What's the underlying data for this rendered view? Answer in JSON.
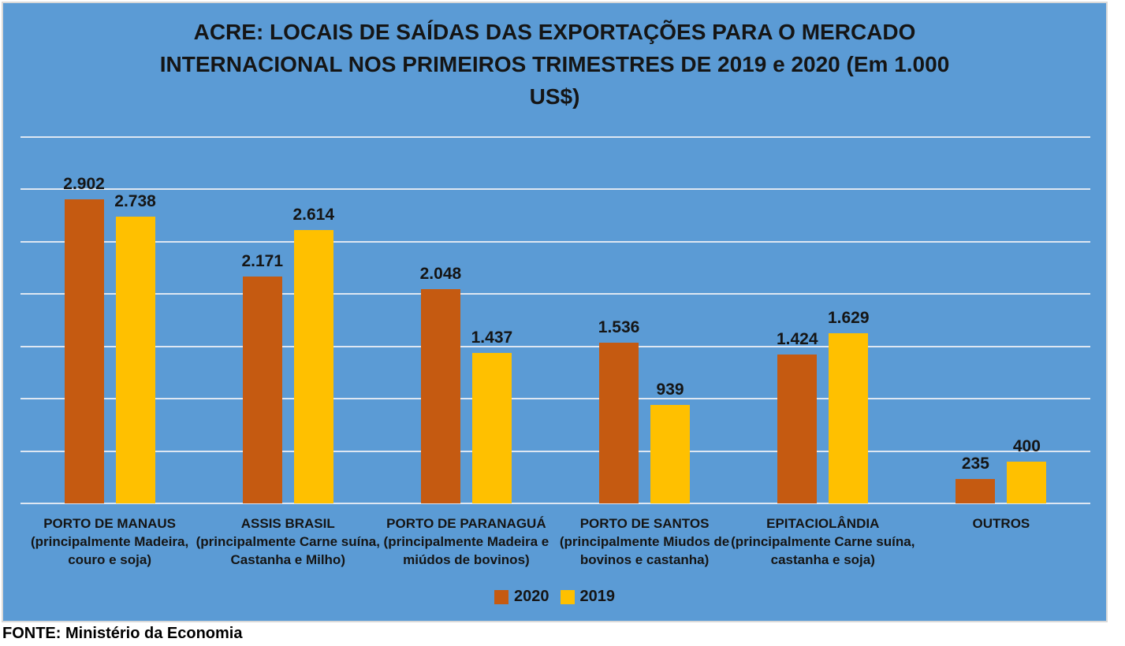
{
  "title": "ACRE: LOCAIS DE SAÍDAS DAS EXPORTAÇÕES PARA O MERCADO INTERNACIONAL NOS PRIMEIROS TRIMESTRES DE 2019 e 2020 (Em 1.000 US$)",
  "source": "FONTE: Ministério da Economia",
  "colors": {
    "background": "#5B9BD5",
    "bar_2020": "#C55A11",
    "bar_2019": "#FFC000",
    "gridline": "#DEE7F2",
    "text": "#151515"
  },
  "legend": [
    {
      "label": "2020",
      "color": "#C55A11"
    },
    {
      "label": "2019",
      "color": "#FFC000"
    }
  ],
  "chart_data": {
    "type": "bar",
    "title": "ACRE: LOCAIS DE SAÍDAS DAS EXPORTAÇÕES PARA O MERCADO INTERNACIONAL NOS PRIMEIROS TRIMESTRES DE 2019 e 2020 (Em 1.000 US$)",
    "categories": [
      {
        "name": "PORTO DE MANAUS",
        "detail": "(principalmente Madeira, couro e soja)"
      },
      {
        "name": "ASSIS BRASIL",
        "detail": "(principalmente Carne suína, Castanha e Milho)"
      },
      {
        "name": "PORTO DE PARANAGUÁ",
        "detail": "(principalmente Madeira e miúdos de bovinos)"
      },
      {
        "name": "PORTO DE SANTOS",
        "detail": "(principalmente Miudos de bovinos e castanha)"
      },
      {
        "name": "EPITACIOLÂNDIA",
        "detail": "(principalmente Carne suína, castanha e soja)"
      },
      {
        "name": "OUTROS",
        "detail": ""
      }
    ],
    "series": [
      {
        "name": "2020",
        "color": "#C55A11",
        "values": [
          2902,
          2171,
          2048,
          1536,
          1424,
          235
        ],
        "labels": [
          "2.902",
          "2.171",
          "2.048",
          "1.536",
          "1.424",
          "235"
        ]
      },
      {
        "name": "2019",
        "color": "#FFC000",
        "values": [
          2738,
          2614,
          1437,
          939,
          1629,
          400
        ],
        "labels": [
          "2.738",
          "2.614",
          "1.437",
          "939",
          "1.629",
          "400"
        ]
      }
    ],
    "ylim": [
      0,
      3500
    ],
    "gridline_step": 500,
    "grid": true,
    "legend_position": "bottom",
    "xlabel": "",
    "ylabel": ""
  }
}
